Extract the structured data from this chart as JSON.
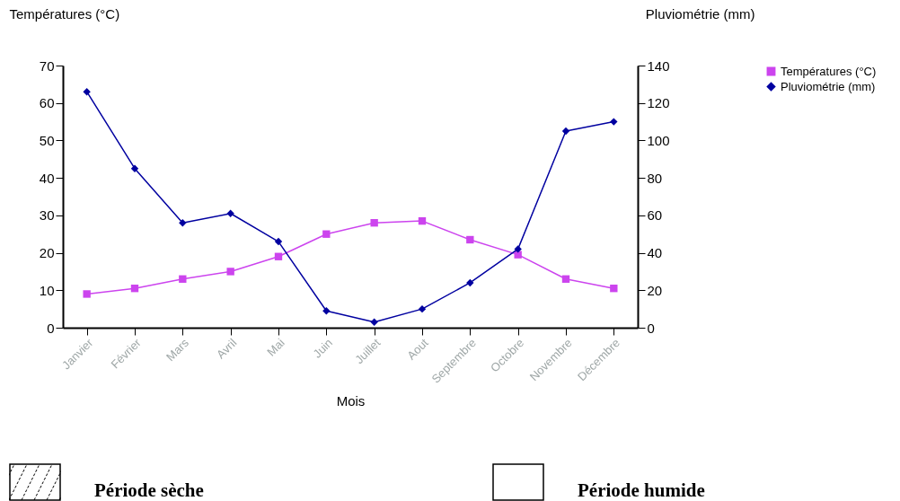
{
  "chart_data": {
    "type": "line",
    "xlabel": "Mois",
    "ylabel": "Températures (°C)",
    "y2label": "Pluviométrie (mm)",
    "categories": [
      "Janvier",
      "Février",
      "Mars",
      "Avril",
      "Mai",
      "Juin",
      "Juillet",
      "Aout",
      "Septembre",
      "Octobre",
      "Novembre",
      "Décembre"
    ],
    "series": [
      {
        "name": "Températures (°C)",
        "color": "#cc44ee",
        "marker": "square",
        "values": [
          9,
          10.5,
          13,
          15,
          19,
          25,
          28,
          28.5,
          23.5,
          19.5,
          13,
          10.5
        ]
      },
      {
        "name": "Pluviométrie (mm)",
        "color": "#0000a0",
        "marker": "diamond",
        "axis": "y2",
        "values": [
          126,
          85,
          56,
          61,
          46,
          9,
          3,
          10,
          24,
          42,
          105,
          110
        ]
      }
    ],
    "ylim": [
      0,
      70
    ],
    "yticks": [
      0,
      10,
      20,
      30,
      40,
      50,
      60,
      70
    ],
    "y2lim": [
      0,
      140
    ],
    "y2ticks": [
      0,
      20,
      40,
      60,
      80,
      100,
      120,
      140
    ],
    "annotations": [
      "Période sèche",
      "Période humide"
    ],
    "legend": "right"
  }
}
